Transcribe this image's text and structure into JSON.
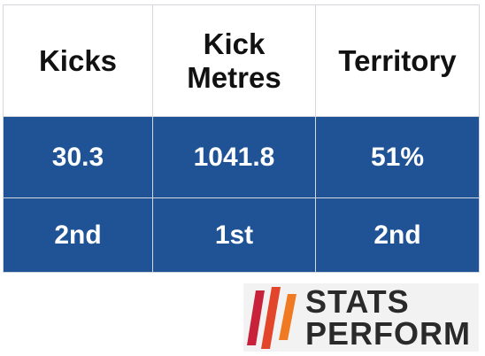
{
  "table": {
    "header": [
      "Kicks",
      "Kick Metres",
      "Territory"
    ],
    "rows": [
      [
        "30.3",
        "1041.8",
        "51%"
      ],
      [
        "2nd",
        "1st",
        "2nd"
      ]
    ]
  },
  "logo": {
    "line1": "STATS",
    "line2": "PERFORM"
  }
}
